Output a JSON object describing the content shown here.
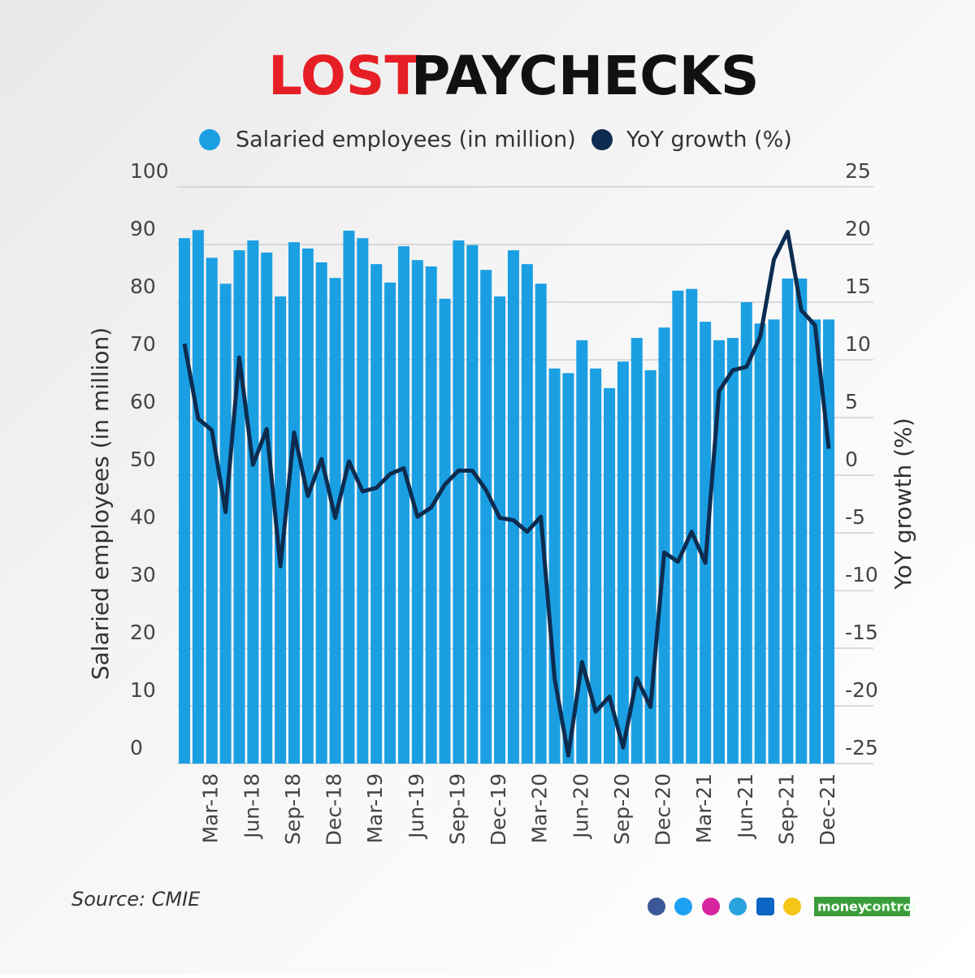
{
  "chart_data": {
    "type": "bar",
    "title": [
      "LOST",
      "PAYCHECKS"
    ],
    "y_label": "Salaried employees (in million)",
    "y2_label": "YoY growth (%)",
    "source": "Source: CMIE",
    "brand": [
      "money",
      "control"
    ],
    "categories": [
      null,
      null,
      "Mar-18",
      null,
      null,
      "Jun-18",
      null,
      null,
      "Sep-18",
      null,
      null,
      "Dec-18",
      null,
      null,
      "Mar-19",
      null,
      null,
      "Jun-19",
      null,
      null,
      "Sep-19",
      null,
      null,
      "Dec-19",
      null,
      null,
      "Mar-20",
      null,
      null,
      "Jun-20",
      null,
      null,
      "Sep-20",
      null,
      null,
      "Dec-20",
      null,
      null,
      "Mar-21",
      null,
      null,
      "Jun-21",
      null,
      null,
      "Sep-21",
      null,
      null,
      "Dec-21"
    ],
    "series": [
      {
        "name": "Salaried employees (in million)",
        "type": "bar",
        "color": "#1b9fe3",
        "values": [
          91.1,
          92.5,
          87.7,
          83.2,
          89,
          90.7,
          88.6,
          81,
          90.4,
          89.3,
          86.9,
          84.2,
          92.4,
          91.1,
          86.6,
          83.4,
          89.7,
          87.3,
          86.2,
          80.6,
          90.7,
          89.9,
          85.6,
          81,
          89,
          86.6,
          83.2,
          68.5,
          67.7,
          73.4,
          68.5,
          65.1,
          69.7,
          73.8,
          68.2,
          75.6,
          82,
          82.3,
          76.6,
          73.4,
          73.8,
          80,
          76.3,
          77,
          84.1,
          84.1,
          77,
          77
        ]
      },
      {
        "name": "YoY growth (%)",
        "type": "line",
        "axis": "y2",
        "color": "#0d2c50",
        "values": [
          11.4,
          4.9,
          3.9,
          -3.2,
          10.2,
          0.9,
          4,
          -7.9,
          3.7,
          -1.8,
          1.4,
          -3.7,
          1.2,
          -1.4,
          -1.1,
          0.1,
          0.6,
          -3.6,
          -2.8,
          -0.8,
          0.4,
          0.4,
          -1.3,
          -3.7,
          -3.9,
          -4.9,
          -3.6,
          -17.6,
          -24.3,
          -16.2,
          -20.5,
          -19.2,
          -23.6,
          -17.6,
          -20.1,
          -6.7,
          -7.5,
          -4.9,
          -7.6,
          7.3,
          9.1,
          9.4,
          12,
          18.7,
          21.1,
          14.3,
          13,
          2.3
        ]
      }
    ],
    "ylim": [
      0,
      100
    ],
    "yticks": [
      0,
      10,
      20,
      30,
      40,
      50,
      60,
      70,
      80,
      90,
      100
    ],
    "y2lim": [
      -25,
      25
    ],
    "y2ticks": [
      -25,
      -20,
      -15,
      -10,
      -5,
      0,
      5,
      10,
      15,
      20,
      25
    ],
    "grid": true
  }
}
